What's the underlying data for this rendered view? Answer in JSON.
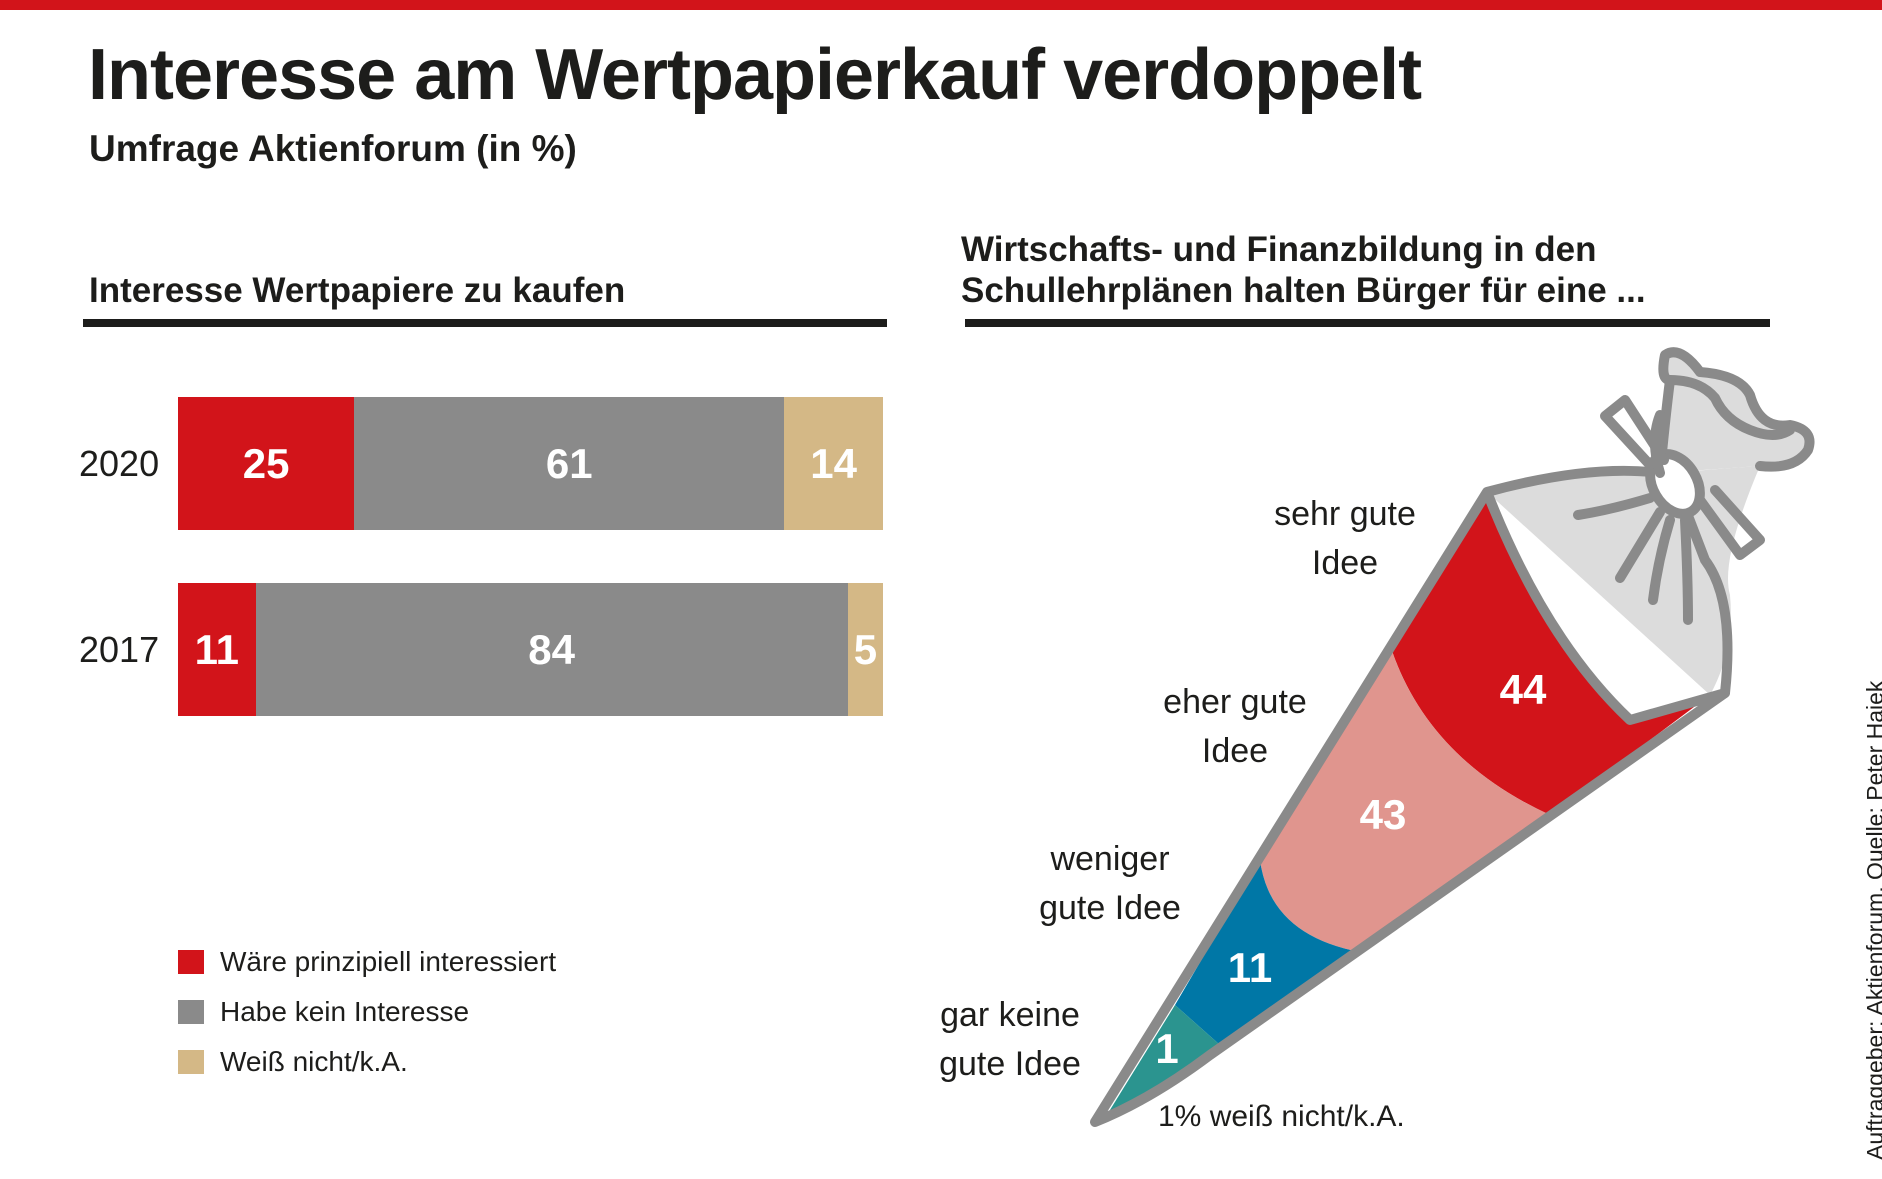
{
  "header": {
    "title": "Interesse am Wertpapierkauf verdoppelt",
    "subtitle": "Umfrage Aktienforum (in %)"
  },
  "colors": {
    "accent_red": "#d2141a",
    "gray": "#8a8a8a",
    "tan": "#d4b886",
    "pink": "#e0958e",
    "blue": "#0077a6",
    "teal": "#2b948f",
    "outline": "#8a8a8a",
    "cone_top": "#dcdcdc"
  },
  "chart_data": [
    {
      "type": "bar",
      "orientation": "horizontal-stacked",
      "title": "Interesse Wertpapiere zu kaufen",
      "categories": [
        "2020",
        "2017"
      ],
      "series": [
        {
          "name": "Wäre prinzipiell interessiert",
          "color": "#d2141a",
          "values": [
            25,
            11
          ]
        },
        {
          "name": "Habe kein Interesse",
          "color": "#8a8a8a",
          "values": [
            61,
            84
          ]
        },
        {
          "name": "Weiß nicht/k.A.",
          "color": "#d4b886",
          "values": [
            14,
            5
          ]
        }
      ],
      "xlim": [
        0,
        100
      ],
      "legend": "bottom-left"
    },
    {
      "type": "pie",
      "style": "school-cone (Schultüte) stacked segments",
      "title": "Wirtschafts- und Finanzbildung in den Schullehrplänen halten Bürger für eine ...",
      "title_lines": [
        "Wirtschafts- und Finanzbildung in den",
        "Schullehrplänen halten Bürger für eine ..."
      ],
      "segments": [
        {
          "label": "sehr gute Idee",
          "label_lines": [
            "sehr gute",
            "Idee"
          ],
          "value": 44,
          "color": "#d2141a"
        },
        {
          "label": "eher gute Idee",
          "label_lines": [
            "eher gute",
            "Idee"
          ],
          "value": 43,
          "color": "#e0958e"
        },
        {
          "label": "weniger gute Idee",
          "label_lines": [
            "weniger",
            "gute Idee"
          ],
          "value": 11,
          "color": "#0077a6"
        },
        {
          "label": "gar keine gute Idee",
          "label_lines": [
            "gar keine",
            "gute Idee"
          ],
          "value": 1,
          "color": "#2b948f"
        }
      ],
      "annotation": "1% weiß nicht/k.A."
    }
  ],
  "source": "Auftraggeber: Aktienforum, Quelle: Peter Hajek"
}
